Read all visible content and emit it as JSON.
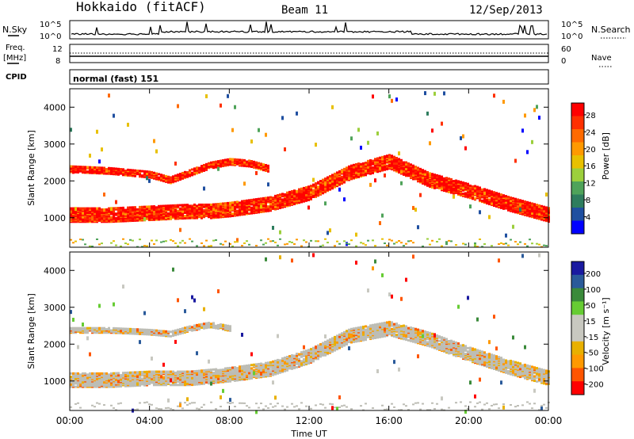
{
  "header": {
    "station": "Hokkaido (fitACF)",
    "beam": "Beam 11",
    "date": "12/Sep/2013"
  },
  "strip_panels": {
    "nsky_label": "N.Sky",
    "nsearch_label": "N.Search",
    "nsky_ticks": [
      "10^5",
      "10^0"
    ],
    "nsearch_ticks": [
      "10^5",
      "10^0"
    ],
    "freq_label_1": "Freq.",
    "freq_label_2": "[MHz]",
    "freq_ticks": [
      "12",
      "8"
    ],
    "nave_label": "Nave",
    "nave_ticks": [
      "60",
      "0"
    ],
    "cpid_label": "CPID",
    "cpid_text": "normal (fast) 151"
  },
  "colors": {
    "power": [
      "#0000ff",
      "#1f4fa0",
      "#2e7d5e",
      "#4fa35a",
      "#9ccf3c",
      "#e8c000",
      "#ff9900",
      "#ff6a00",
      "#ff3000",
      "#ff0000"
    ],
    "velocity": [
      "#ff0000",
      "#ff5500",
      "#ff9900",
      "#e8b000",
      "#c8c8c0",
      "#c8c8c0",
      "#66cc33",
      "#3a8a3a",
      "#2a5a9a",
      "#1a1aa0"
    ],
    "ground": "#bdbdb5"
  },
  "chart_data": [
    {
      "type": "heatmap",
      "name": "power",
      "xlabel": "",
      "ylabel": "Slant Range [km]",
      "xlim": [
        0,
        24
      ],
      "ylim": [
        200,
        4500
      ],
      "yticks": [
        "1000",
        "2000",
        "3000",
        "4000"
      ],
      "colorbar_label": "Power [dB]",
      "colorbar_ticks": [
        "4",
        "8",
        "12",
        "16",
        "20",
        "24",
        "28"
      ],
      "colorbar_range": [
        0,
        32
      ],
      "bands": [
        {
          "name": "lower",
          "x": [
            0,
            2,
            4,
            6,
            7,
            8,
            10,
            12,
            14,
            16,
            18,
            20,
            22,
            24
          ],
          "y": [
            1050,
            1050,
            1100,
            1150,
            1150,
            1200,
            1350,
            1650,
            2200,
            2500,
            2000,
            1700,
            1350,
            1050
          ],
          "width": 380,
          "level": 28
        },
        {
          "name": "upper",
          "x": [
            0,
            2,
            4,
            5,
            6,
            7,
            8,
            9,
            10
          ],
          "y": [
            2300,
            2250,
            2150,
            2000,
            2200,
            2400,
            2500,
            2450,
            2300
          ],
          "width": 180,
          "level": 24
        }
      ]
    },
    {
      "type": "heatmap",
      "name": "velocity",
      "xlabel": "Time UT",
      "ylabel": "Slant Range [km]",
      "xlim": [
        0,
        24
      ],
      "ylim": [
        200,
        4500
      ],
      "xticks": [
        "00:00",
        "04:00",
        "08:00",
        "12:00",
        "16:00",
        "20:00",
        "00:00"
      ],
      "yticks": [
        "1000",
        "2000",
        "3000",
        "4000"
      ],
      "colorbar_label": "Velocity [m s⁻¹]",
      "colorbar_ticks": [
        "200",
        "100",
        "50",
        "15",
        "-15",
        "-50",
        "-100",
        "-200"
      ],
      "bands": [
        {
          "name": "lower",
          "x": [
            0,
            2,
            4,
            6,
            7,
            8,
            10,
            12,
            14,
            16,
            18,
            20,
            22,
            24
          ],
          "y": [
            1000,
            1000,
            1050,
            1050,
            1100,
            1150,
            1300,
            1650,
            2200,
            2400,
            2100,
            1700,
            1350,
            1050
          ],
          "width": 380
        },
        {
          "name": "upper",
          "x": [
            0,
            2,
            4,
            5,
            6,
            7,
            8
          ],
          "y": [
            2350,
            2350,
            2300,
            2250,
            2400,
            2500,
            2400
          ],
          "width": 140
        }
      ]
    }
  ]
}
